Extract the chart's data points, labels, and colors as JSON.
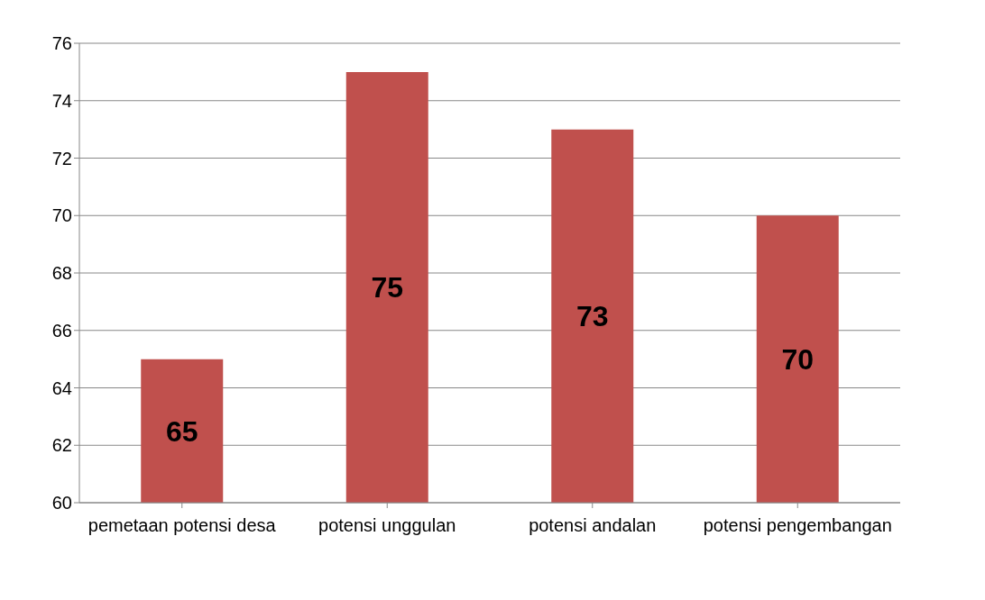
{
  "chart_data": {
    "type": "bar",
    "categories": [
      "pemetaan potensi desa",
      "potensi unggulan",
      "potensi andalan",
      "potensi pengembangan"
    ],
    "values": [
      65,
      75,
      73,
      70
    ],
    "color": "#c0504d",
    "ylim": [
      60,
      76
    ],
    "yticks": [
      60,
      62,
      64,
      66,
      68,
      70,
      72,
      74,
      76
    ],
    "grid": "y",
    "data_labels": true
  }
}
